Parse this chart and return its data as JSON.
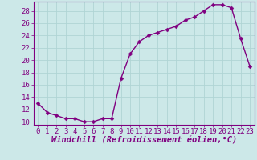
{
  "x": [
    0,
    1,
    2,
    3,
    4,
    5,
    6,
    7,
    8,
    9,
    10,
    11,
    12,
    13,
    14,
    15,
    16,
    17,
    18,
    19,
    20,
    21,
    22,
    23
  ],
  "y": [
    13,
    11.5,
    11,
    10.5,
    10.5,
    10,
    10,
    10.5,
    10.5,
    17,
    21,
    23,
    24,
    24.5,
    25,
    25.5,
    26.5,
    27,
    28,
    29,
    29,
    28.5,
    23.5,
    19
  ],
  "line_color": "#800080",
  "marker": "D",
  "marker_size": 2.5,
  "xlabel": "Windchill (Refroidissement éolien,°C)",
  "xlabel_fontsize": 7.5,
  "ylim": [
    9.5,
    29.5
  ],
  "xlim": [
    -0.5,
    23.5
  ],
  "yticks": [
    10,
    12,
    14,
    16,
    18,
    20,
    22,
    24,
    26,
    28
  ],
  "xticks": [
    0,
    1,
    2,
    3,
    4,
    5,
    6,
    7,
    8,
    9,
    10,
    11,
    12,
    13,
    14,
    15,
    16,
    17,
    18,
    19,
    20,
    21,
    22,
    23
  ],
  "grid_color": "#b0d4d4",
  "bg_color": "#cce8e8",
  "plot_bg_color": "#cce8e8",
  "tick_color": "#800080",
  "tick_fontsize": 6.5,
  "line_width": 1.0,
  "spine_color": "#800080"
}
